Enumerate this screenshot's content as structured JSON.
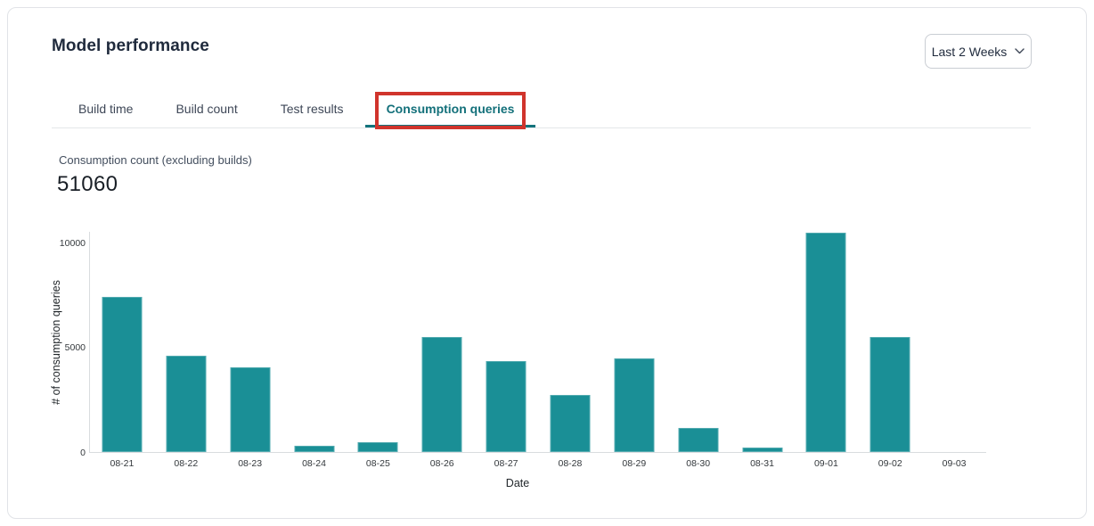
{
  "header": {
    "title": "Model performance",
    "range_selector": {
      "label": "Last 2 Weeks",
      "icon": "chevron-down-icon"
    }
  },
  "tabs": {
    "items": [
      {
        "label": "Build time",
        "active": false,
        "annotated": false
      },
      {
        "label": "Build count",
        "active": false,
        "annotated": false
      },
      {
        "label": "Test results",
        "active": false,
        "annotated": false
      },
      {
        "label": "Consumption queries",
        "active": true,
        "annotated": true
      }
    ],
    "active_color": "#13707a",
    "annotation_color": "#d0342c"
  },
  "metric": {
    "label": "Consumption count (excluding builds)",
    "value": "51060"
  },
  "chart_data": {
    "type": "bar",
    "categories": [
      "08-21",
      "08-22",
      "08-23",
      "08-24",
      "08-25",
      "08-26",
      "08-27",
      "08-28",
      "08-29",
      "08-30",
      "08-31",
      "09-01",
      "09-02",
      "09-03"
    ],
    "values": [
      7400,
      4600,
      4050,
      310,
      450,
      5480,
      4330,
      2720,
      4450,
      1150,
      220,
      10430,
      5470,
      0
    ],
    "title": "",
    "xlabel": "Date",
    "ylabel": "# of consumption queries",
    "ylim": [
      0,
      10530
    ],
    "yticks": [
      0,
      5000,
      10000
    ],
    "bar_color": "#1a8f96",
    "grid": false,
    "legend": false
  }
}
